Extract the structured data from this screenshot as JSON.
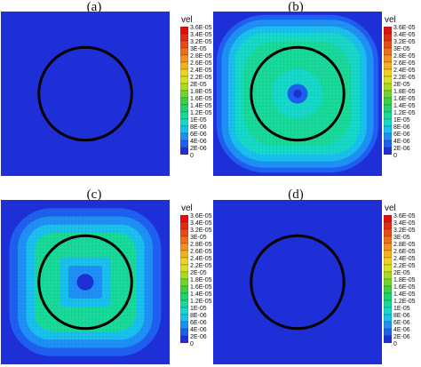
{
  "chart_data": {
    "type": "heatmap",
    "legend_title": "vel",
    "legend_ticks": [
      "3.6E-05",
      "3.4E-05",
      "3.2E-05",
      "3E-05",
      "2.8E-05",
      "2.6E-05",
      "2.4E-05",
      "2.2E-05",
      "2E-05",
      "1.8E-05",
      "1.6E-05",
      "1.4E-05",
      "1.2E-05",
      "1E-05",
      "8E-06",
      "6E-06",
      "4E-06",
      "2E-06",
      "0"
    ],
    "colorbar_colors": [
      "#1f2fd8",
      "#1f5ff0",
      "#1e90f5",
      "#19c0ee",
      "#16d8c8",
      "#18d89a",
      "#1ed46c",
      "#3cd044",
      "#70d42a",
      "#a8dc20",
      "#d8e020",
      "#f0d020",
      "#f5b020",
      "#f59020",
      "#f06d1a",
      "#ea4a16",
      "#e42a14",
      "#de1010"
    ],
    "color_range": [
      0,
      3.6e-05
    ],
    "panels": [
      {
        "label": "(a)",
        "field": "none",
        "peak_level": 0.0
      },
      {
        "label": "(b)",
        "field": "annulus-soft",
        "peak_level": 0.36
      },
      {
        "label": "(c)",
        "field": "annulus-square",
        "peak_level": 0.34
      },
      {
        "label": "(d)",
        "field": "none",
        "peak_level": 0.0
      }
    ]
  }
}
